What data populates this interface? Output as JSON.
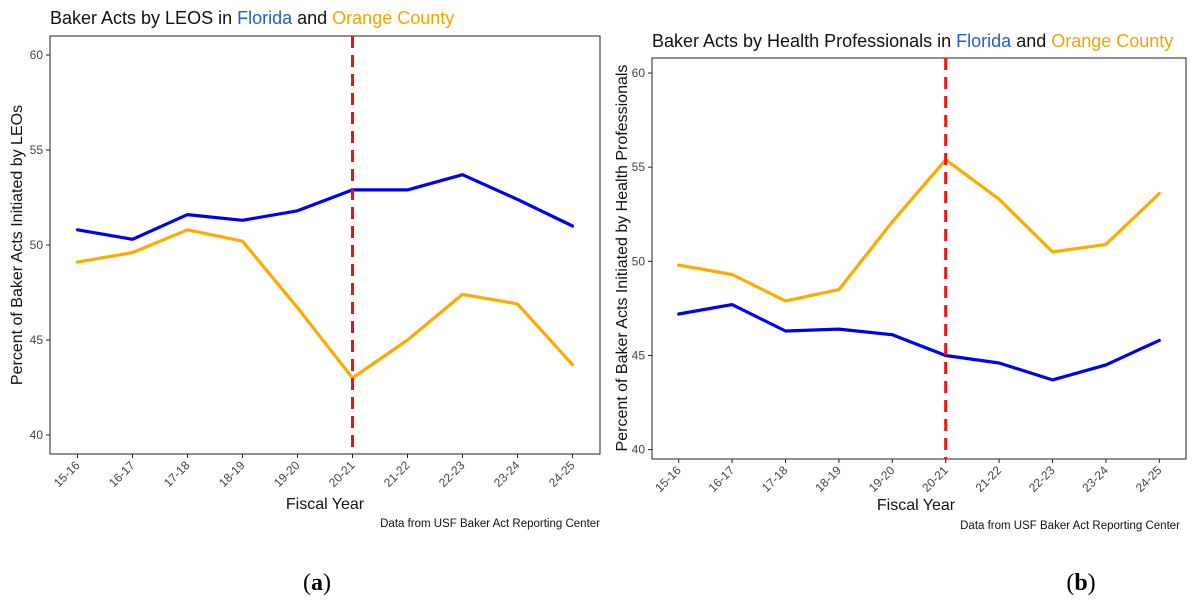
{
  "chart_data": [
    {
      "type": "line",
      "title": {
        "prefix": "Baker Acts by LEOS in ",
        "florida": "Florida",
        "joiner": " and ",
        "orange": "Orange County"
      },
      "xlabel": "Fiscal Year",
      "ylabel": "Percent of Baker Acts Initiated by LEOs",
      "categories": [
        "15-16",
        "16-17",
        "17-18",
        "18-19",
        "19-20",
        "20-21",
        "21-22",
        "22-23",
        "23-24",
        "24-25"
      ],
      "ylim": [
        39,
        61
      ],
      "yticks": [
        40,
        45,
        50,
        55,
        60
      ],
      "series": [
        {
          "key": "florida",
          "color": "#0000ee",
          "values": [
            50.8,
            50.3,
            51.6,
            51.3,
            51.8,
            52.9,
            52.9,
            53.7,
            52.4,
            51.0
          ]
        },
        {
          "key": "orange",
          "color": "#ffaa00",
          "values": [
            49.1,
            49.6,
            50.8,
            50.2,
            46.7,
            43.0,
            45.0,
            47.4,
            46.9,
            43.7
          ]
        }
      ],
      "reference_line": {
        "category": "20-21",
        "color": "#ee1111"
      },
      "source": "Data from USF Baker Act Reporting Center",
      "panel_label": "(a)"
    },
    {
      "type": "line",
      "title": {
        "prefix": "Baker Acts by Health Professionals in ",
        "florida": "Florida",
        "joiner": " and ",
        "orange": "Orange County"
      },
      "xlabel": "Fiscal Year",
      "ylabel": "Percent of Baker Acts Initiated by Health Professionals",
      "categories": [
        "15-16",
        "16-17",
        "17-18",
        "18-19",
        "19-20",
        "20-21",
        "21-22",
        "22-23",
        "23-24",
        "24-25"
      ],
      "ylim": [
        39.5,
        60.8
      ],
      "yticks": [
        40,
        45,
        50,
        55,
        60
      ],
      "series": [
        {
          "key": "florida",
          "color": "#0000ee",
          "values": [
            47.2,
            47.7,
            46.3,
            46.4,
            46.1,
            45.0,
            44.6,
            43.7,
            44.5,
            45.8
          ]
        },
        {
          "key": "orange",
          "color": "#ffaa00",
          "values": [
            49.8,
            49.3,
            47.9,
            48.5,
            52.1,
            55.4,
            53.3,
            50.5,
            50.9,
            53.6
          ]
        }
      ],
      "reference_line": {
        "category": "20-21",
        "color": "#ee1111"
      },
      "source": "Data from USF Baker Act Reporting Center",
      "panel_label": "(b)"
    }
  ],
  "colors": {
    "florida_text": "#1f5ed6",
    "orange_text": "#f5a300",
    "axis": "#222222"
  }
}
